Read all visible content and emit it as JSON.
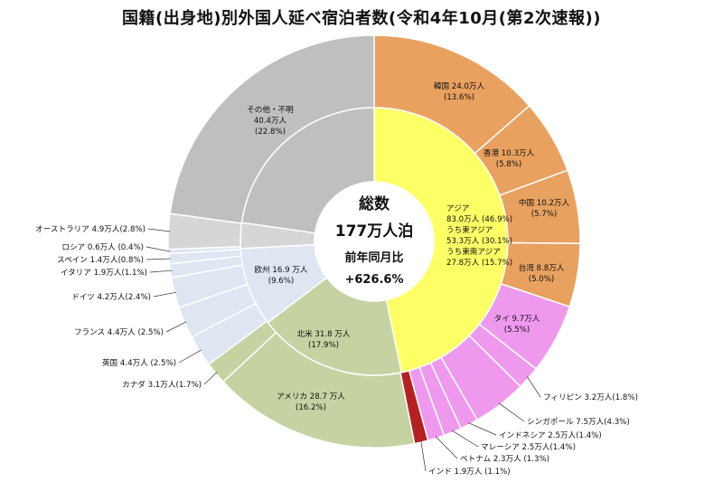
{
  "chart_data": {
    "type": "sunburst",
    "title": "国籍(出身地)別外国人延べ宿泊者数(令和4年10月(第2次速報))",
    "center": {
      "line1": "総数",
      "line2": "177万人泊",
      "line3": "前年同月比",
      "line4": "+626.6%"
    },
    "inner": [
      {
        "key": "asia",
        "lines": [
          "アジア",
          "83.0万人 (46.9%)",
          "うち東アジア",
          "53.3万人 (30.1%)",
          "うち東南アジア",
          "27.8万人 (15.7%)"
        ],
        "value": 83.0,
        "color": "#ffff66"
      },
      {
        "key": "na",
        "lines": [
          "北米 31.8 万人",
          "(17.9%)"
        ],
        "value": 31.8,
        "color": "#c5d3a2"
      },
      {
        "key": "eu",
        "lines": [
          "欧州 16.9 万人",
          "(9.6%)"
        ],
        "value": 16.9,
        "color": "#dde6f1"
      },
      {
        "key": "oc",
        "lines": [],
        "value": 5.5,
        "color": "#d6d6d6"
      },
      {
        "key": "other",
        "lines": [
          "その他・不明",
          "40.4万人",
          "(22.8%)"
        ],
        "value": 40.4,
        "color": "#bfbfbf"
      }
    ],
    "outer": [
      {
        "key": "korea",
        "lines": [
          "韓国 24.0万人",
          "(13.6%)"
        ],
        "value": 24.0,
        "color": "#e8a15f"
      },
      {
        "key": "hk",
        "lines": [
          "香港 10.3万人",
          "(5.8%)"
        ],
        "value": 10.3,
        "color": "#e8a15f"
      },
      {
        "key": "china",
        "lines": [
          "中国 10.2万人",
          "(5.7%)"
        ],
        "value": 10.2,
        "color": "#e8a15f"
      },
      {
        "key": "taiwan",
        "lines": [
          "台湾 8.8万人",
          "(5.0%)"
        ],
        "value": 8.8,
        "color": "#e8a15f"
      },
      {
        "key": "thai",
        "lines": [
          "タイ 9.7万人",
          "(5.5%)"
        ],
        "value": 9.7,
        "color": "#ee99ee"
      },
      {
        "key": "ph",
        "text": "フィリピン 3.2万人(1.8%)",
        "value": 3.2,
        "color": "#ee99ee"
      },
      {
        "key": "sg",
        "text": "シンガポール 7.5万人(4.3%)",
        "value": 7.5,
        "color": "#ee99ee"
      },
      {
        "key": "id",
        "text": "インドネシア 2.5万人(1.4%)",
        "value": 2.5,
        "color": "#ee99ee"
      },
      {
        "key": "my",
        "text": "マレーシア 2.5万人(1.4%)",
        "value": 2.5,
        "color": "#ee99ee"
      },
      {
        "key": "vn",
        "text": "ベトナム 2.3万人 (1.3%)",
        "value": 2.3,
        "color": "#ee99ee"
      },
      {
        "key": "in",
        "text": "インド 1.9万人 (1.1%)",
        "value": 1.9,
        "color": "#b52020"
      },
      {
        "key": "us",
        "lines": [
          "アメリカ 28.7 万人",
          "(16.2%)"
        ],
        "value": 28.7,
        "color": "#c5d3a2"
      },
      {
        "key": "ca",
        "text": "カナダ 3.1万人(1.7%)",
        "value": 3.1,
        "color": "#c5d3a2"
      },
      {
        "key": "uk",
        "text": "英国 4.4万人 (2.5%)",
        "value": 4.4,
        "color": "#dde6f1"
      },
      {
        "key": "fr",
        "text": "フランス 4.4万人 (2.5%)",
        "value": 4.4,
        "color": "#dde6f1"
      },
      {
        "key": "de",
        "text": "ドイツ 4.2万人(2.4%)",
        "value": 4.2,
        "color": "#dde6f1"
      },
      {
        "key": "it",
        "text": "イタリア 1.9万人(1.1%)",
        "value": 1.9,
        "color": "#dde6f1"
      },
      {
        "key": "es",
        "text": "スペイン 1.4万人(0.8%)",
        "value": 1.4,
        "color": "#dde6f1"
      },
      {
        "key": "ru",
        "text": "ロシア 0.6万人 (0.4%)",
        "value": 0.6,
        "color": "#dde6f1"
      },
      {
        "key": "au",
        "text": "オーストラリア 4.9万人(2.8%)",
        "value": 4.9,
        "color": "#d6d6d6"
      },
      {
        "key": "other2",
        "lines": [],
        "value": 40.4,
        "color": "#bfbfbf"
      }
    ]
  }
}
